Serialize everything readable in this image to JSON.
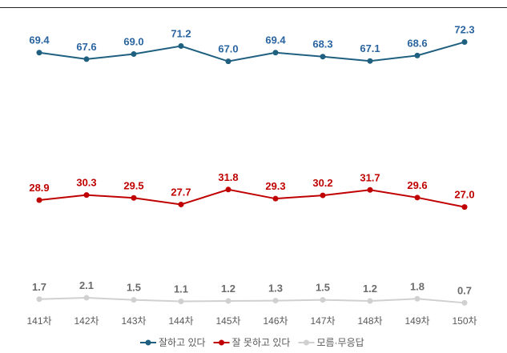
{
  "chart_data": {
    "type": "line",
    "categories": [
      "141차",
      "142차",
      "143차",
      "144차",
      "145차",
      "146차",
      "147차",
      "148차",
      "149차",
      "150차"
    ],
    "series": [
      {
        "name": "잘하고 있다",
        "color": "#1f6080",
        "label_color": "#2a64a0",
        "values": [
          69.4,
          67.6,
          69.0,
          71.2,
          67.0,
          69.4,
          68.3,
          67.1,
          68.6,
          72.3
        ]
      },
      {
        "name": "잘 못하고 있다",
        "color": "#c00000",
        "label_color": "#c00000",
        "values": [
          28.9,
          30.3,
          29.5,
          27.7,
          31.8,
          29.3,
          30.2,
          31.7,
          29.6,
          27.0
        ]
      },
      {
        "name": "모름·무응답",
        "color": "#d0d0d0",
        "label_color": "#6b6b6b",
        "values": [
          1.7,
          2.1,
          1.5,
          1.1,
          1.2,
          1.3,
          1.5,
          1.2,
          1.8,
          0.7
        ]
      }
    ],
    "data_labels": true,
    "grid": false,
    "y_axis_visible": false,
    "legend_position": "bottom"
  }
}
